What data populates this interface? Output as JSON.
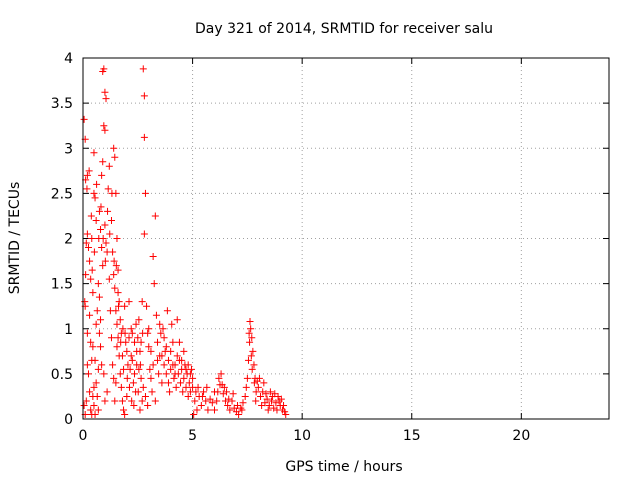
{
  "chart_data": {
    "type": "scatter",
    "title": "Day 321 of 2014, SRMTID for receiver salu",
    "xlabel": "GPS time / hours",
    "ylabel": "SRMTID / TECUs",
    "xlim": [
      0,
      24
    ],
    "ylim": [
      0,
      4
    ],
    "xticks": [
      0,
      5,
      10,
      15,
      20
    ],
    "xtick_labels": [
      "0",
      "5",
      "10",
      "15",
      "20"
    ],
    "yticks": [
      0,
      0.5,
      1,
      1.5,
      2,
      2.5,
      3,
      3.5,
      4
    ],
    "ytick_labels": [
      "0",
      "0.5",
      "1",
      "1.5",
      "2",
      "2.5",
      "3",
      "3.5",
      "4"
    ],
    "grid": true,
    "marker": "+",
    "color": "#ff0000",
    "series": [
      {
        "name": "SRMTID",
        "points": [
          [
            0.05,
            3.32
          ],
          [
            0.1,
            3.1
          ],
          [
            0.12,
            2.65
          ],
          [
            0.2,
            2.7
          ],
          [
            0.15,
            1.95
          ],
          [
            0.08,
            1.3
          ],
          [
            0.1,
            1.25
          ],
          [
            0.2,
            0.95
          ],
          [
            0.25,
            0.5
          ],
          [
            0.3,
            0.3
          ],
          [
            0.35,
            0.1
          ],
          [
            0.4,
            0.05
          ],
          [
            0.15,
            0.2
          ],
          [
            0.05,
            0.15
          ],
          [
            0.3,
            1.75
          ],
          [
            0.35,
            1.55
          ],
          [
            0.4,
            2.0
          ],
          [
            0.45,
            1.4
          ],
          [
            0.5,
            2.5
          ],
          [
            0.5,
            2.95
          ],
          [
            0.55,
            2.45
          ],
          [
            0.6,
            2.2
          ],
          [
            0.45,
            0.8
          ],
          [
            0.55,
            0.65
          ],
          [
            0.6,
            0.4
          ],
          [
            0.65,
            0.25
          ],
          [
            0.7,
            0.55
          ],
          [
            0.5,
            0.35
          ],
          [
            0.75,
            2.3
          ],
          [
            0.8,
            2.1
          ],
          [
            0.85,
            2.7
          ],
          [
            0.9,
            3.85
          ],
          [
            0.95,
            3.88
          ],
          [
            0.95,
            3.25
          ],
          [
            1.0,
            3.62
          ],
          [
            1.05,
            3.55
          ],
          [
            1.0,
            3.2
          ],
          [
            0.9,
            2.85
          ],
          [
            0.85,
            1.9
          ],
          [
            0.9,
            1.7
          ],
          [
            1.0,
            2.15
          ],
          [
            1.05,
            1.95
          ],
          [
            1.1,
            1.85
          ],
          [
            1.15,
            2.55
          ],
          [
            1.2,
            2.8
          ],
          [
            1.2,
            1.55
          ],
          [
            1.25,
            1.2
          ],
          [
            1.3,
            0.9
          ],
          [
            1.35,
            0.6
          ],
          [
            1.4,
            0.45
          ],
          [
            1.1,
            0.3
          ],
          [
            1.0,
            0.2
          ],
          [
            0.95,
            0.5
          ],
          [
            0.8,
            0.8
          ],
          [
            0.75,
            0.95
          ],
          [
            0.7,
            0.1
          ],
          [
            1.4,
            3.0
          ],
          [
            1.45,
            2.9
          ],
          [
            1.5,
            2.5
          ],
          [
            1.55,
            2.0
          ],
          [
            1.6,
            1.65
          ],
          [
            1.6,
            1.4
          ],
          [
            1.65,
            1.3
          ],
          [
            1.7,
            1.1
          ],
          [
            1.75,
            0.95
          ],
          [
            1.8,
            0.7
          ],
          [
            1.85,
            0.55
          ],
          [
            1.5,
            0.4
          ],
          [
            1.55,
            0.8
          ],
          [
            1.45,
            0.2
          ],
          [
            1.9,
            1.25
          ],
          [
            1.95,
            0.85
          ],
          [
            2.0,
            0.75
          ],
          [
            2.05,
            0.6
          ],
          [
            2.1,
            0.9
          ],
          [
            2.15,
            0.55
          ],
          [
            2.2,
            0.7
          ],
          [
            2.25,
            0.65
          ],
          [
            2.3,
            0.4
          ],
          [
            2.35,
            0.5
          ],
          [
            2.4,
            0.3
          ],
          [
            2.45,
            0.6
          ],
          [
            2.0,
            0.25
          ],
          [
            2.2,
            1.0
          ],
          [
            2.5,
            0.9
          ],
          [
            2.55,
            1.1
          ],
          [
            2.6,
            0.75
          ],
          [
            2.65,
            0.85
          ],
          [
            2.7,
            1.3
          ],
          [
            2.75,
            3.88
          ],
          [
            2.8,
            3.58
          ],
          [
            2.8,
            3.12
          ],
          [
            2.85,
            2.5
          ],
          [
            2.8,
            2.05
          ],
          [
            2.9,
            1.25
          ],
          [
            2.95,
            0.95
          ],
          [
            2.7,
            0.2
          ],
          [
            2.6,
            0.1
          ],
          [
            3.0,
            0.8
          ],
          [
            3.05,
            0.55
          ],
          [
            3.1,
            0.45
          ],
          [
            3.15,
            0.3
          ],
          [
            3.2,
            1.8
          ],
          [
            3.25,
            1.5
          ],
          [
            3.3,
            2.25
          ],
          [
            3.35,
            1.15
          ],
          [
            3.4,
            0.65
          ],
          [
            3.45,
            0.5
          ],
          [
            3.5,
            0.7
          ],
          [
            3.55,
            0.95
          ],
          [
            3.3,
            0.2
          ],
          [
            3.6,
            0.4
          ],
          [
            3.65,
            1.0
          ],
          [
            3.7,
            0.6
          ],
          [
            3.75,
            0.75
          ],
          [
            3.8,
            0.5
          ],
          [
            3.85,
            1.2
          ],
          [
            3.9,
            0.4
          ],
          [
            3.95,
            0.3
          ],
          [
            4.0,
            0.55
          ],
          [
            4.05,
            1.05
          ],
          [
            4.1,
            0.85
          ],
          [
            4.15,
            0.45
          ],
          [
            4.2,
            0.6
          ],
          [
            4.25,
            0.35
          ],
          [
            4.3,
            1.1
          ],
          [
            4.35,
            0.5
          ],
          [
            4.4,
            0.65
          ],
          [
            4.45,
            0.4
          ],
          [
            4.5,
            0.55
          ],
          [
            4.55,
            0.3
          ],
          [
            4.6,
            0.45
          ],
          [
            4.65,
            0.6
          ],
          [
            4.7,
            0.35
          ],
          [
            4.75,
            0.5
          ],
          [
            4.8,
            0.25
          ],
          [
            4.85,
            0.4
          ],
          [
            4.9,
            0.3
          ],
          [
            4.95,
            0.55
          ],
          [
            5.0,
            0.45
          ],
          [
            5.1,
            0.2
          ],
          [
            5.2,
            0.1
          ],
          [
            5.3,
            0.25
          ],
          [
            5.4,
            0.15
          ],
          [
            5.5,
            0.3
          ],
          [
            5.6,
            0.2
          ],
          [
            5.7,
            0.1
          ],
          [
            5.8,
            0.22
          ],
          [
            5.9,
            0.18
          ],
          [
            6.0,
            0.3
          ],
          [
            6.1,
            0.2
          ],
          [
            6.2,
            0.45
          ],
          [
            6.3,
            0.5
          ],
          [
            6.35,
            0.38
          ],
          [
            6.4,
            0.28
          ],
          [
            6.5,
            0.2
          ],
          [
            6.6,
            0.15
          ],
          [
            6.7,
            0.1
          ],
          [
            6.8,
            0.2
          ],
          [
            6.9,
            0.12
          ],
          [
            7.0,
            0.08
          ],
          [
            7.1,
            0.05
          ],
          [
            7.2,
            0.12
          ],
          [
            7.3,
            0.18
          ],
          [
            7.4,
            0.25
          ],
          [
            7.5,
            0.45
          ],
          [
            7.55,
            0.65
          ],
          [
            7.6,
            0.85
          ],
          [
            7.62,
            1.08
          ],
          [
            7.65,
            1.0
          ],
          [
            7.7,
            0.9
          ],
          [
            7.75,
            0.75
          ],
          [
            7.8,
            0.6
          ],
          [
            7.85,
            0.45
          ],
          [
            7.9,
            0.3
          ],
          [
            7.95,
            0.42
          ],
          [
            8.0,
            0.35
          ],
          [
            8.1,
            0.25
          ],
          [
            8.2,
            0.3
          ],
          [
            8.3,
            0.18
          ],
          [
            8.4,
            0.22
          ],
          [
            8.5,
            0.15
          ],
          [
            8.6,
            0.2
          ],
          [
            8.7,
            0.12
          ],
          [
            8.8,
            0.18
          ],
          [
            8.9,
            0.25
          ],
          [
            9.0,
            0.15
          ],
          [
            9.1,
            0.1
          ],
          [
            9.2,
            0.08
          ],
          [
            9.25,
            0.05
          ],
          [
            5.05,
            0.05
          ],
          [
            5.15,
            0.3
          ],
          [
            5.25,
            0.35
          ],
          [
            5.45,
            0.25
          ],
          [
            5.65,
            0.35
          ],
          [
            6.55,
            0.3
          ],
          [
            0.2,
            2.05
          ],
          [
            0.25,
            1.9
          ],
          [
            0.3,
            1.15
          ],
          [
            0.35,
            0.85
          ],
          [
            0.4,
            0.65
          ],
          [
            0.45,
            0.25
          ],
          [
            0.5,
            0.15
          ],
          [
            0.55,
            0.05
          ],
          [
            0.6,
            1.05
          ],
          [
            0.65,
            1.2
          ],
          [
            0.7,
            1.5
          ],
          [
            0.75,
            1.35
          ],
          [
            0.8,
            1.1
          ],
          [
            0.85,
            0.6
          ],
          [
            1.3,
            2.2
          ],
          [
            1.35,
            1.85
          ],
          [
            1.4,
            1.6
          ],
          [
            1.45,
            1.45
          ],
          [
            1.5,
            1.2
          ],
          [
            1.55,
            1.05
          ],
          [
            1.6,
            0.9
          ],
          [
            1.65,
            0.7
          ],
          [
            1.7,
            0.5
          ],
          [
            1.75,
            0.35
          ],
          [
            1.8,
            0.2
          ],
          [
            1.85,
            0.1
          ],
          [
            1.9,
            0.05
          ],
          [
            2.1,
            1.3
          ],
          [
            2.25,
            0.95
          ],
          [
            2.35,
            0.85
          ],
          [
            2.45,
            0.75
          ],
          [
            2.55,
            0.55
          ],
          [
            2.65,
            0.45
          ],
          [
            2.75,
            0.35
          ],
          [
            2.85,
            0.25
          ],
          [
            2.95,
            0.15
          ],
          [
            3.0,
            1.0
          ],
          [
            3.1,
            0.75
          ],
          [
            3.2,
            0.6
          ],
          [
            3.4,
            0.85
          ],
          [
            3.5,
            1.05
          ],
          [
            3.6,
            0.7
          ],
          [
            3.7,
            0.9
          ],
          [
            3.8,
            0.8
          ],
          [
            3.9,
            0.65
          ],
          [
            4.0,
            0.75
          ],
          [
            4.1,
            0.6
          ],
          [
            4.2,
            0.5
          ],
          [
            4.3,
            0.7
          ],
          [
            4.4,
            0.85
          ],
          [
            4.5,
            0.65
          ],
          [
            4.6,
            0.75
          ],
          [
            4.7,
            0.55
          ],
          [
            4.8,
            0.6
          ],
          [
            4.9,
            0.5
          ],
          [
            5.0,
            0.35
          ],
          [
            6.0,
            0.1
          ],
          [
            6.15,
            0.3
          ],
          [
            6.25,
            0.38
          ],
          [
            6.45,
            0.35
          ],
          [
            6.65,
            0.22
          ],
          [
            6.85,
            0.28
          ],
          [
            7.05,
            0.15
          ],
          [
            7.25,
            0.1
          ],
          [
            7.45,
            0.35
          ],
          [
            7.58,
            0.95
          ],
          [
            7.68,
            0.7
          ],
          [
            7.72,
            0.55
          ],
          [
            7.82,
            0.4
          ],
          [
            7.88,
            0.2
          ],
          [
            8.05,
            0.45
          ],
          [
            8.15,
            0.15
          ],
          [
            8.25,
            0.4
          ],
          [
            8.35,
            0.28
          ],
          [
            8.45,
            0.1
          ],
          [
            8.55,
            0.3
          ],
          [
            8.65,
            0.25
          ],
          [
            8.75,
            0.28
          ],
          [
            8.85,
            0.1
          ],
          [
            8.95,
            0.2
          ],
          [
            9.05,
            0.22
          ],
          [
            9.15,
            0.15
          ],
          [
            0.1,
            0.05
          ],
          [
            0.2,
            0.6
          ],
          [
            0.12,
            1.6
          ],
          [
            0.18,
            2.55
          ],
          [
            0.28,
            2.75
          ],
          [
            0.38,
            2.25
          ],
          [
            0.42,
            1.65
          ],
          [
            0.52,
            1.85
          ],
          [
            0.62,
            2.6
          ],
          [
            0.72,
            2.0
          ],
          [
            0.82,
            2.35
          ],
          [
            0.92,
            2.0
          ],
          [
            1.02,
            1.75
          ],
          [
            1.12,
            2.3
          ],
          [
            1.22,
            2.05
          ],
          [
            1.32,
            2.5
          ],
          [
            1.42,
            1.75
          ],
          [
            1.52,
            1.7
          ],
          [
            1.62,
            1.25
          ],
          [
            1.72,
            0.85
          ],
          [
            1.82,
            1.0
          ],
          [
            1.92,
            0.95
          ],
          [
            2.02,
            0.45
          ],
          [
            2.12,
            0.35
          ],
          [
            2.22,
            0.2
          ],
          [
            2.32,
            0.15
          ],
          [
            2.42,
            1.05
          ],
          [
            2.52,
            0.3
          ],
          [
            2.62,
            0.6
          ],
          [
            2.72,
            0.95
          ]
        ]
      }
    ]
  }
}
